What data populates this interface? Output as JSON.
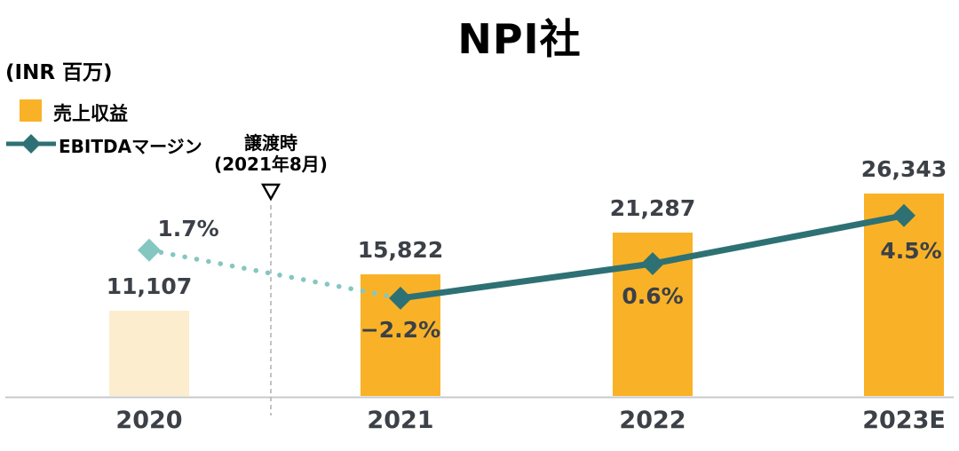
{
  "title": "NPI社",
  "unit_label": "(INR 百万)",
  "legend": {
    "revenue_label": "売上収益",
    "ebitda_label": "EBITDAマージン"
  },
  "annotation": {
    "line1": "譲渡時",
    "line2": "(2021年8月)"
  },
  "colors": {
    "bar_orange": "#F9B227",
    "bar_faded": "#FCEDCE",
    "line_dark_teal": "#2E7174",
    "line_light_teal": "#84C7C1",
    "text_dark": "#3C4047",
    "axis_gray": "#C8C9CA",
    "dashed_gray": "#B3B3B3"
  },
  "chart_data": {
    "type": "bar+line",
    "title": "NPI社",
    "ylabel": "(INR 百万)",
    "categories": [
      "2020",
      "2021",
      "2022",
      "2023E"
    ],
    "series": [
      {
        "name": "売上収益",
        "type": "bar",
        "values": [
          11107,
          15822,
          21287,
          26343
        ],
        "labels": [
          "11,107",
          "15,822",
          "21,287",
          "26,343"
        ],
        "faded": [
          true,
          false,
          false,
          false
        ]
      },
      {
        "name": "EBITDAマージン",
        "type": "line",
        "values": [
          1.7,
          -2.2,
          0.6,
          4.5
        ],
        "labels": [
          "1.7%",
          "−2.2%",
          "0.6%",
          "4.5%"
        ],
        "dotted_segment_through_index": 1
      }
    ],
    "annotation": {
      "text": "譲渡時（2021年8月）",
      "between_categories": [
        "2020",
        "2021"
      ]
    },
    "legend_position": "top-left",
    "grid": false,
    "ylim_bars": [
      0,
      30000
    ]
  }
}
